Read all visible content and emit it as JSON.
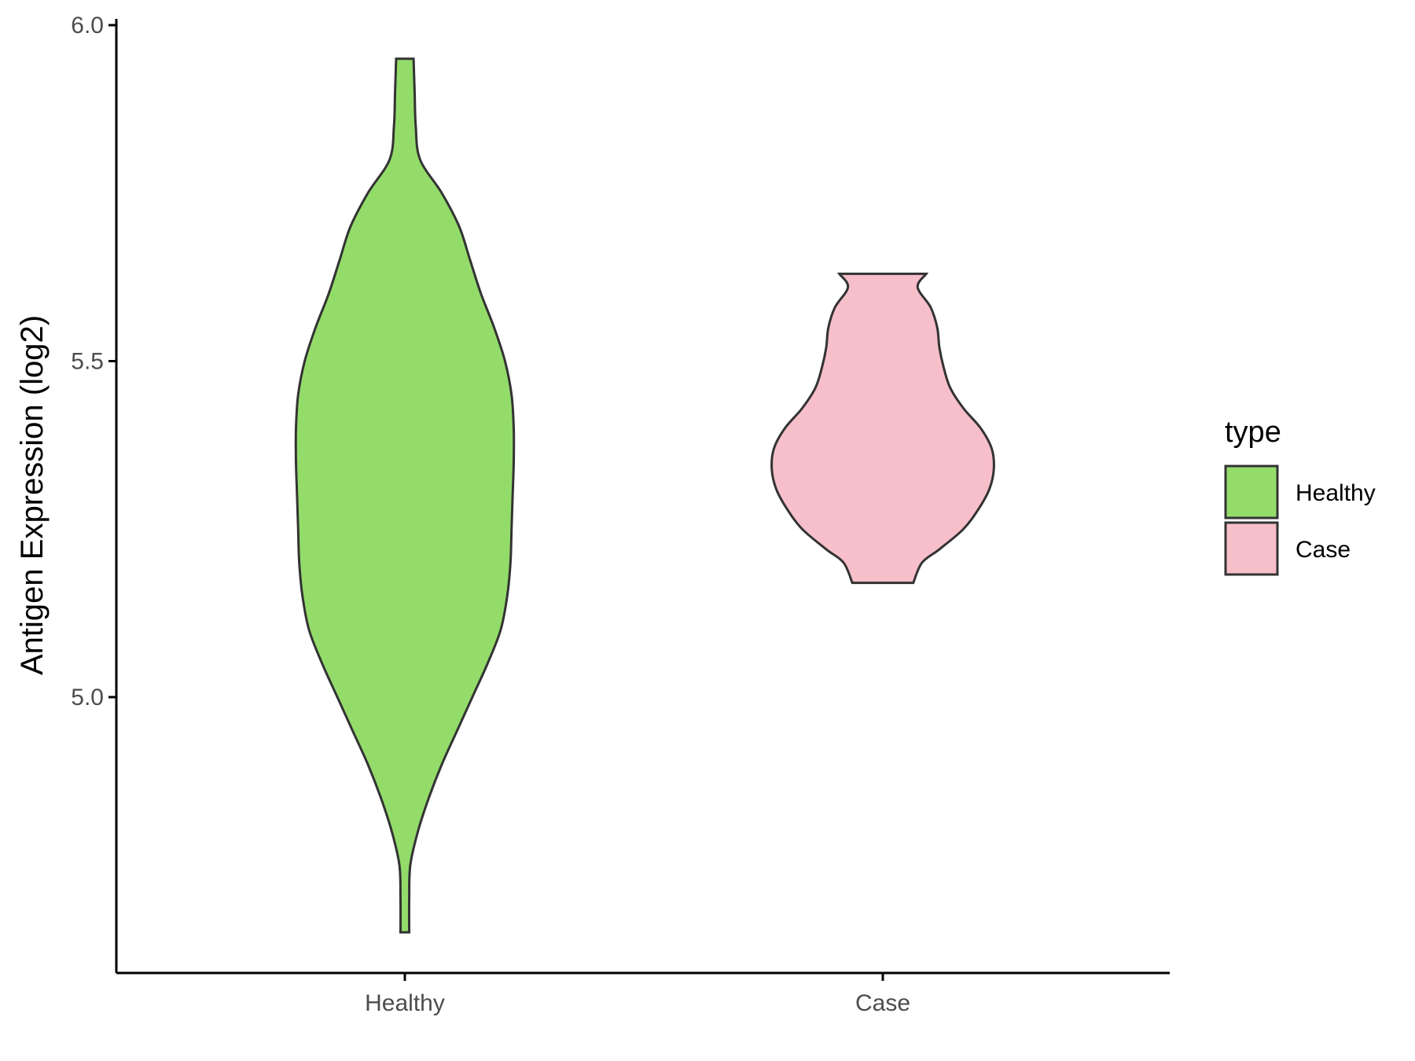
{
  "chart_data": {
    "type": "violin",
    "ylabel": "Antigen Expression (log2)",
    "xlabel": "",
    "title": "",
    "ylim": [
      4.59,
      6.02
    ],
    "y_ticks": [
      5.0,
      5.5,
      6.0
    ],
    "y_tick_labels": [
      "5.0",
      "5.5",
      "6.0"
    ],
    "categories": [
      "Healthy",
      "Case"
    ],
    "legend": {
      "title": "type",
      "position": "right",
      "entries": [
        {
          "label": "Healthy",
          "color": "#93dc6a"
        },
        {
          "label": "Case",
          "color": "#f7bfca"
        }
      ]
    },
    "grid": false,
    "series": [
      {
        "name": "Healthy",
        "color": "#93dc6a",
        "min": 4.65,
        "max": 5.95,
        "density_profile": [
          [
            4.65,
            0.02
          ],
          [
            4.7,
            0.02
          ],
          [
            4.75,
            0.025
          ],
          [
            4.8,
            0.06
          ],
          [
            4.85,
            0.11
          ],
          [
            4.9,
            0.17
          ],
          [
            4.95,
            0.24
          ],
          [
            5.0,
            0.31
          ],
          [
            5.05,
            0.38
          ],
          [
            5.1,
            0.44
          ],
          [
            5.15,
            0.47
          ],
          [
            5.2,
            0.485
          ],
          [
            5.25,
            0.49
          ],
          [
            5.3,
            0.495
          ],
          [
            5.35,
            0.5
          ],
          [
            5.4,
            0.5
          ],
          [
            5.45,
            0.49
          ],
          [
            5.5,
            0.46
          ],
          [
            5.55,
            0.41
          ],
          [
            5.6,
            0.35
          ],
          [
            5.65,
            0.3
          ],
          [
            5.7,
            0.25
          ],
          [
            5.75,
            0.17
          ],
          [
            5.8,
            0.07
          ],
          [
            5.85,
            0.05
          ],
          [
            5.9,
            0.045
          ],
          [
            5.95,
            0.04
          ]
        ]
      },
      {
        "name": "Case",
        "color": "#f7bfca",
        "min": 5.17,
        "max": 5.63,
        "density_profile": [
          [
            5.17,
            0.14
          ],
          [
            5.2,
            0.18
          ],
          [
            5.22,
            0.26
          ],
          [
            5.25,
            0.37
          ],
          [
            5.28,
            0.44
          ],
          [
            5.31,
            0.49
          ],
          [
            5.34,
            0.51
          ],
          [
            5.37,
            0.5
          ],
          [
            5.4,
            0.45
          ],
          [
            5.43,
            0.37
          ],
          [
            5.46,
            0.31
          ],
          [
            5.49,
            0.28
          ],
          [
            5.52,
            0.26
          ],
          [
            5.55,
            0.25
          ],
          [
            5.58,
            0.22
          ],
          [
            5.61,
            0.16
          ],
          [
            5.63,
            0.2
          ]
        ]
      }
    ]
  }
}
